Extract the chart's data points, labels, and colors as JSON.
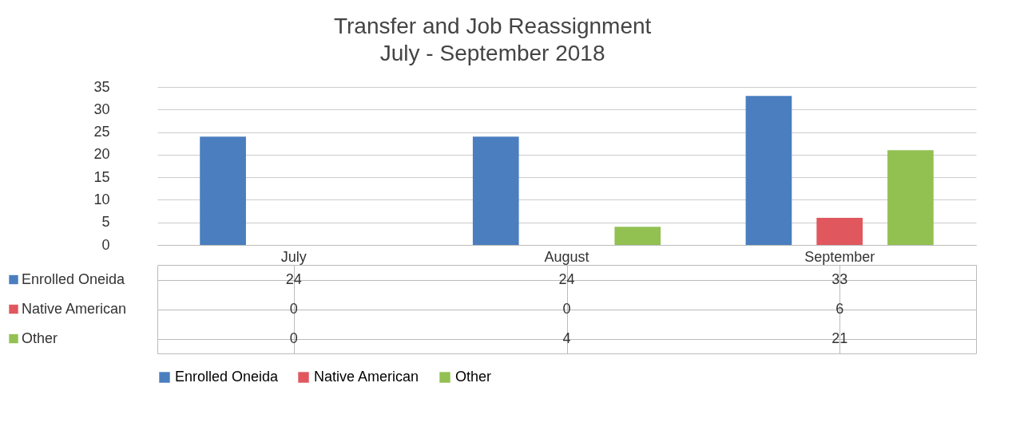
{
  "chart_data": {
    "type": "bar",
    "title": "Transfer and Job Reassignment",
    "subtitle": "July - September 2018",
    "categories": [
      "July",
      "August",
      "September"
    ],
    "series": [
      {
        "name": "Enrolled Oneida",
        "color": "#4a7ebf",
        "values": [
          24,
          24,
          33
        ]
      },
      {
        "name": "Native American",
        "color": "#e0585e",
        "values": [
          0,
          0,
          6
        ]
      },
      {
        "name": "Other",
        "color": "#92c152",
        "values": [
          0,
          4,
          21
        ]
      }
    ],
    "ylim": [
      0,
      35
    ],
    "yticks": [
      0,
      5,
      10,
      15,
      20,
      25,
      30,
      35
    ],
    "grid": "y",
    "legend": "bottom",
    "data_labels": true
  }
}
